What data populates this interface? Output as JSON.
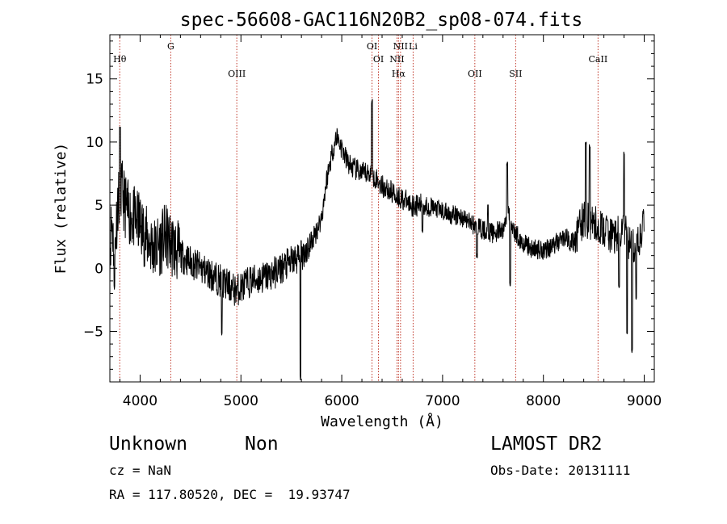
{
  "chart_data": {
    "type": "line",
    "title": "spec-56608-GAC116N20B2_sp08-074.fits",
    "xlabel": "Wavelength (Å)",
    "ylabel": "Flux (relative)",
    "xlim": [
      3700,
      9100
    ],
    "ylim": [
      -9,
      18.5
    ],
    "xticks": [
      4000,
      5000,
      6000,
      7000,
      8000,
      9000
    ],
    "yticks": [
      -5,
      0,
      5,
      10,
      15
    ],
    "grid": false,
    "line_color": "#000000",
    "marker_color": "#c0392b",
    "anchors": [
      [
        3700,
        1.5
      ],
      [
        3720,
        4
      ],
      [
        3745,
        1
      ],
      [
        3780,
        5.5
      ],
      [
        3820,
        6
      ],
      [
        3870,
        4.5
      ],
      [
        3930,
        4
      ],
      [
        4000,
        3.5
      ],
      [
        4050,
        2.5
      ],
      [
        4100,
        2
      ],
      [
        4150,
        1.5
      ],
      [
        4200,
        2
      ],
      [
        4250,
        2.5
      ],
      [
        4300,
        2
      ],
      [
        4350,
        1.5
      ],
      [
        4400,
        1
      ],
      [
        4500,
        0.5
      ],
      [
        4600,
        0
      ],
      [
        4700,
        -0.5
      ],
      [
        4800,
        -1
      ],
      [
        4900,
        -1.5
      ],
      [
        4950,
        -1.8
      ],
      [
        5000,
        -1.5
      ],
      [
        5100,
        -1
      ],
      [
        5200,
        -0.8
      ],
      [
        5300,
        -0.5
      ],
      [
        5400,
        0
      ],
      [
        5500,
        0.5
      ],
      [
        5600,
        1
      ],
      [
        5700,
        2
      ],
      [
        5800,
        4
      ],
      [
        5850,
        7
      ],
      [
        5900,
        9
      ],
      [
        5950,
        10.5
      ],
      [
        6000,
        9.5
      ],
      [
        6050,
        8.5
      ],
      [
        6100,
        8
      ],
      [
        6200,
        7.5
      ],
      [
        6300,
        7.5
      ],
      [
        6400,
        6.5
      ],
      [
        6500,
        6
      ],
      [
        6600,
        5.5
      ],
      [
        6700,
        5
      ],
      [
        6800,
        5
      ],
      [
        6900,
        4.8
      ],
      [
        7000,
        4.5
      ],
      [
        7100,
        4.2
      ],
      [
        7200,
        4
      ],
      [
        7300,
        3.5
      ],
      [
        7400,
        3
      ],
      [
        7500,
        2.8
      ],
      [
        7600,
        3
      ],
      [
        7650,
        4.5
      ],
      [
        7700,
        3
      ],
      [
        7800,
        2
      ],
      [
        7900,
        1.5
      ],
      [
        8000,
        1.5
      ],
      [
        8100,
        1.8
      ],
      [
        8200,
        2.5
      ],
      [
        8300,
        2
      ],
      [
        8400,
        4
      ],
      [
        8500,
        3.5
      ],
      [
        8600,
        3
      ],
      [
        8700,
        2.5
      ],
      [
        8800,
        3
      ],
      [
        8850,
        2
      ],
      [
        8900,
        2
      ],
      [
        9000,
        3
      ],
      [
        9100,
        3
      ]
    ],
    "spikes": [
      [
        3745,
        -1.5
      ],
      [
        3800,
        11
      ],
      [
        4810,
        -5.2
      ],
      [
        5590,
        -8.7
      ],
      [
        6300,
        13.2
      ],
      [
        6800,
        3
      ],
      [
        7340,
        1
      ],
      [
        7450,
        5
      ],
      [
        7640,
        8.3
      ],
      [
        7670,
        -1.2
      ],
      [
        8420,
        9.8
      ],
      [
        8460,
        9.6
      ],
      [
        8750,
        -1.5
      ],
      [
        8800,
        9.2
      ],
      [
        8830,
        -5.2
      ],
      [
        8880,
        -6.5
      ],
      [
        8920,
        -2.5
      ],
      [
        8990,
        4.5
      ]
    ],
    "lines": [
      {
        "name": "Hθ",
        "wavelength": 3798,
        "row": 2
      },
      {
        "name": "G",
        "wavelength": 4304,
        "row": 1
      },
      {
        "name": "OIII",
        "wavelength": 4959,
        "row": 3
      },
      {
        "name": "OI",
        "wavelength": 6300,
        "row": 1
      },
      {
        "name": "OI",
        "wavelength": 6364,
        "row": 2
      },
      {
        "name": "NII",
        "wavelength": 6548,
        "row": 2
      },
      {
        "name": "Hα",
        "wavelength": 6563,
        "row": 3
      },
      {
        "name": "NII",
        "wavelength": 6583,
        "row": 1
      },
      {
        "name": "Li",
        "wavelength": 6708,
        "row": 1
      },
      {
        "name": "OII",
        "wavelength": 7320,
        "row": 3
      },
      {
        "name": "SII",
        "wavelength": 7725,
        "row": 3
      },
      {
        "name": "CaII",
        "wavelength": 8542,
        "row": 2
      }
    ]
  },
  "info": {
    "classification": "Unknown",
    "subclass": "Non",
    "cz": "cz = NaN",
    "coords": "RA = 117.80520, DEC =  19.93747",
    "survey": "LAMOST DR2",
    "obs_date": "Obs-Date: 20131111"
  }
}
